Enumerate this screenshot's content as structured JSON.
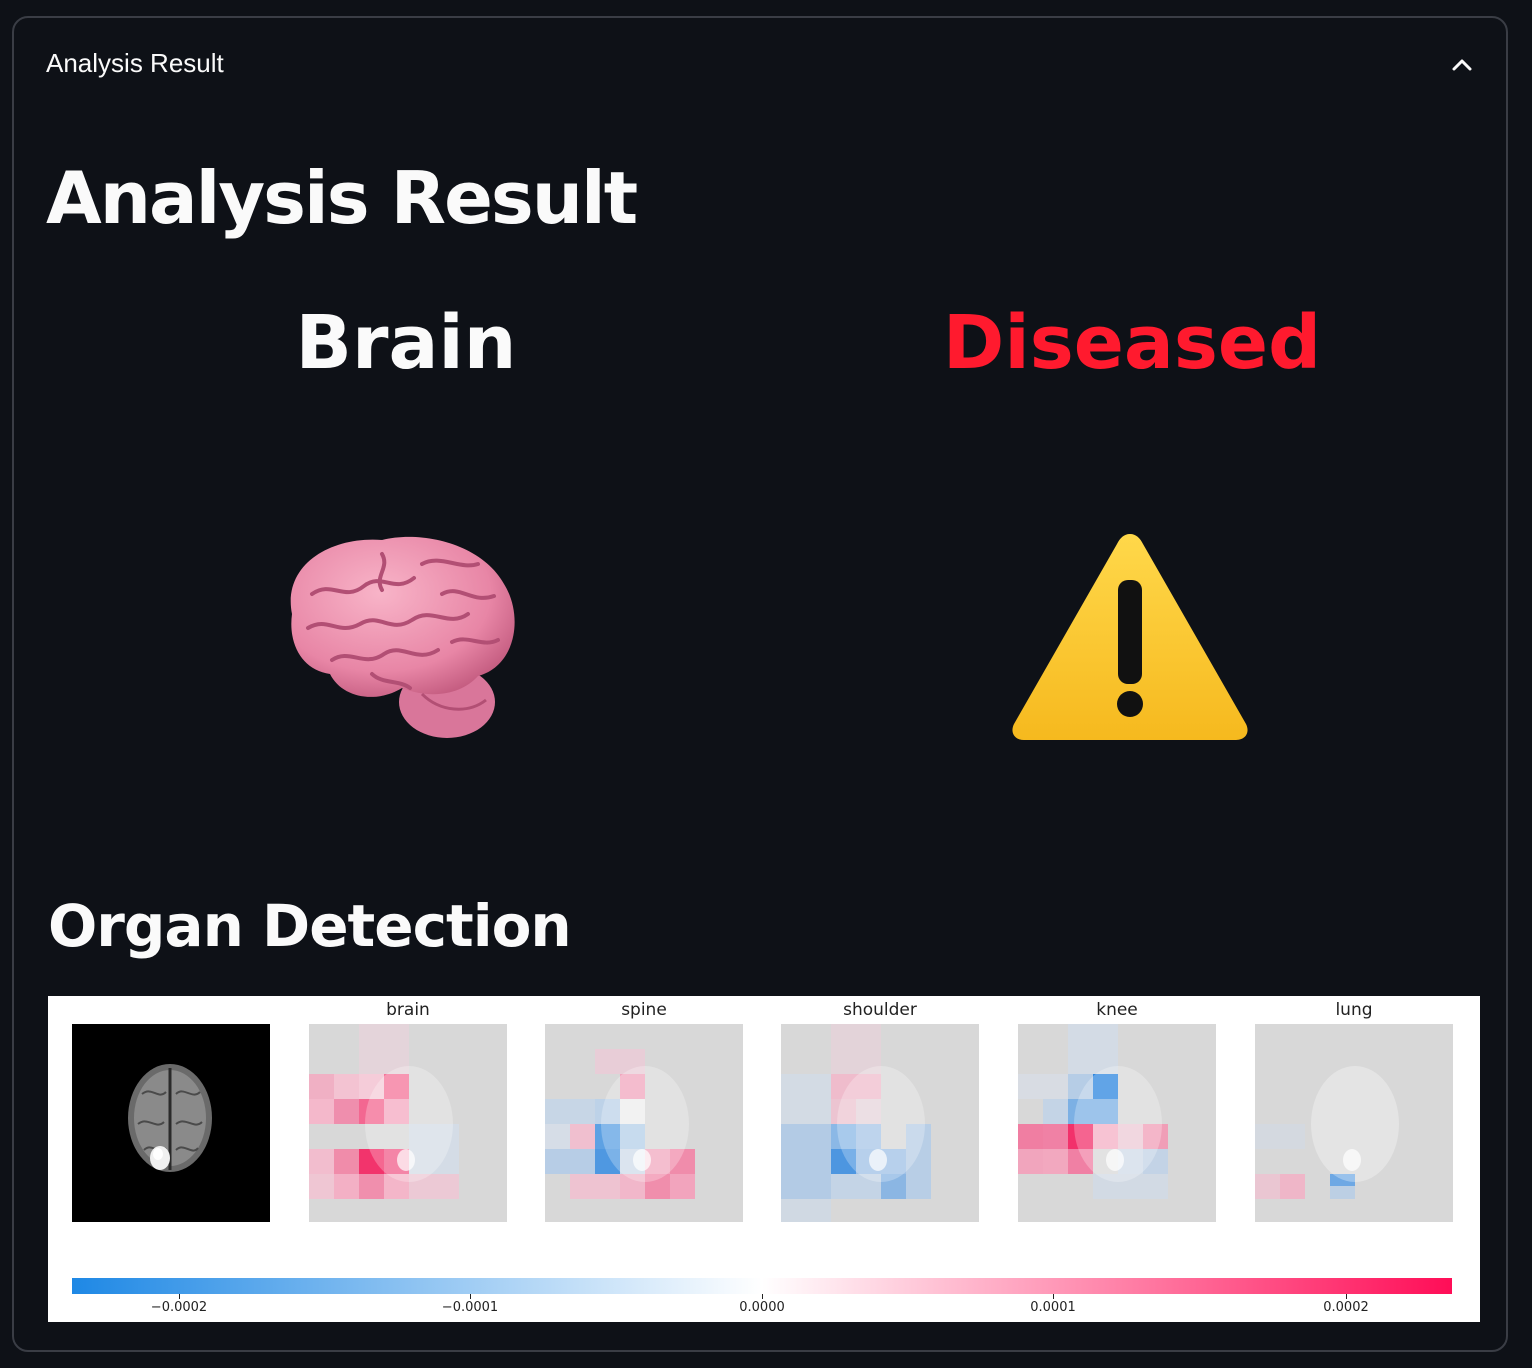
{
  "expander": {
    "title": "Analysis Result",
    "expanded": true,
    "chevron_icon": "chevron-up-icon"
  },
  "main": {
    "heading": "Analysis Result",
    "organ": {
      "label": "Brain",
      "icon": "brain-icon"
    },
    "status": {
      "label": "Diseased",
      "color": "#ff1a2e",
      "icon": "warning-icon"
    },
    "section_heading": "Organ Detection"
  },
  "figure": {
    "panels": [
      "brain",
      "spine",
      "shoulder",
      "knee",
      "lung"
    ],
    "colorbar": {
      "ticks": [
        "−0.0002",
        "−0.0001",
        "0.0000",
        "0.0001",
        "0.0002"
      ],
      "min_color": "#1e88e5",
      "mid_color": "#ffffff",
      "max_color": "#ff0d57"
    }
  },
  "colors": {
    "background": "#0e1117",
    "text": "#fafafa",
    "danger": "#ff1a2e"
  }
}
